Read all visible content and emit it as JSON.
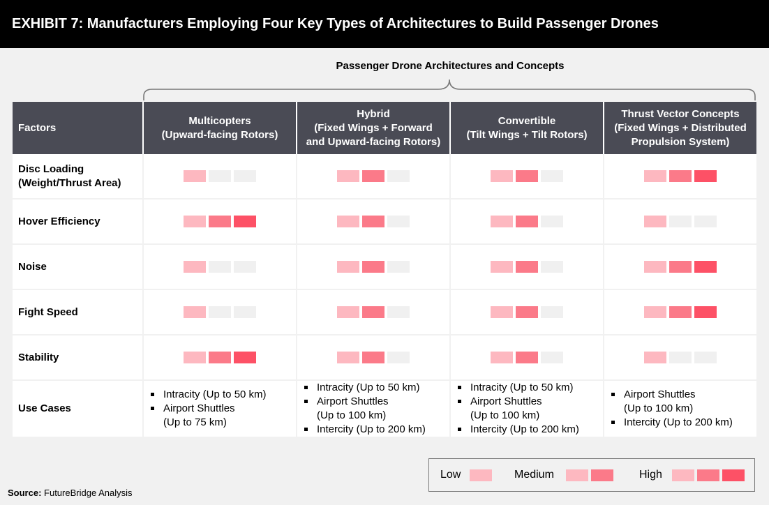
{
  "header": {
    "title": "EXHIBIT 7: Manufacturers Employing Four Key Types of Architectures to Build Passenger Drones"
  },
  "section_title": "Passenger Drone Architectures and Concepts",
  "table": {
    "factors_header": "Factors",
    "columns": [
      {
        "line1": "Multicopters",
        "line2": "(Upward-facing Rotors)",
        "line3": ""
      },
      {
        "line1": "Hybrid",
        "line2": "(Fixed Wings + Forward",
        "line3": "and Upward-facing Rotors)"
      },
      {
        "line1": "Convertible",
        "line2": "(Tilt Wings + Tilt Rotors)",
        "line3": ""
      },
      {
        "line1": "Thrust Vector Concepts",
        "line2": "(Fixed Wings + Distributed",
        "line3": "Propulsion System)"
      }
    ],
    "rows": [
      {
        "factor_line1": "Disc Loading",
        "factor_line2": "(Weight/Thrust Area)",
        "ratings": [
          1,
          2,
          2,
          3
        ]
      },
      {
        "factor_line1": "Hover Efficiency",
        "factor_line2": "",
        "ratings": [
          3,
          2,
          2,
          1
        ]
      },
      {
        "factor_line1": "Noise",
        "factor_line2": "",
        "ratings": [
          1,
          2,
          2,
          3
        ]
      },
      {
        "factor_line1": "Fight Speed",
        "factor_line2": "",
        "ratings": [
          1,
          2,
          2,
          3
        ]
      },
      {
        "factor_line1": "Stability",
        "factor_line2": "",
        "ratings": [
          3,
          2,
          2,
          1
        ]
      }
    ],
    "use_cases": {
      "label": "Use Cases",
      "cells": [
        [
          {
            "line1": "Intracity (Up to 50 km)",
            "line2": ""
          },
          {
            "line1": "Airport Shuttles",
            "line2": "(Up to 75 km)"
          }
        ],
        [
          {
            "line1": "Intracity (Up to 50 km)",
            "line2": ""
          },
          {
            "line1": "Airport Shuttles",
            "line2": "(Up to 100 km)"
          },
          {
            "line1": "Intercity (Up to 200 km)",
            "line2": ""
          }
        ],
        [
          {
            "line1": "Intracity (Up to 50 km)",
            "line2": ""
          },
          {
            "line1": "Airport Shuttles",
            "line2": "(Up to 100 km)"
          },
          {
            "line1": "Intercity (Up to 200 km)",
            "line2": ""
          }
        ],
        [
          {
            "line1": "Airport Shuttles",
            "line2": "(Up to 100 km)"
          },
          {
            "line1": "Intercity (Up to 200 km)",
            "line2": ""
          }
        ]
      ]
    }
  },
  "legend": {
    "low": {
      "label": "Low",
      "level": 1
    },
    "medium": {
      "label": "Medium",
      "level": 2
    },
    "high": {
      "label": "High",
      "level": 3
    }
  },
  "colors": {
    "header_bg": "#000000",
    "table_header_bg": "#4a4b55",
    "level_empty": "#f0f0f0",
    "level_1": "#fdb8c0",
    "level_2": "#fb7a89",
    "level_3": "#fd5166"
  },
  "source": {
    "label": "Source:",
    "text": " FutureBridge Analysis"
  }
}
